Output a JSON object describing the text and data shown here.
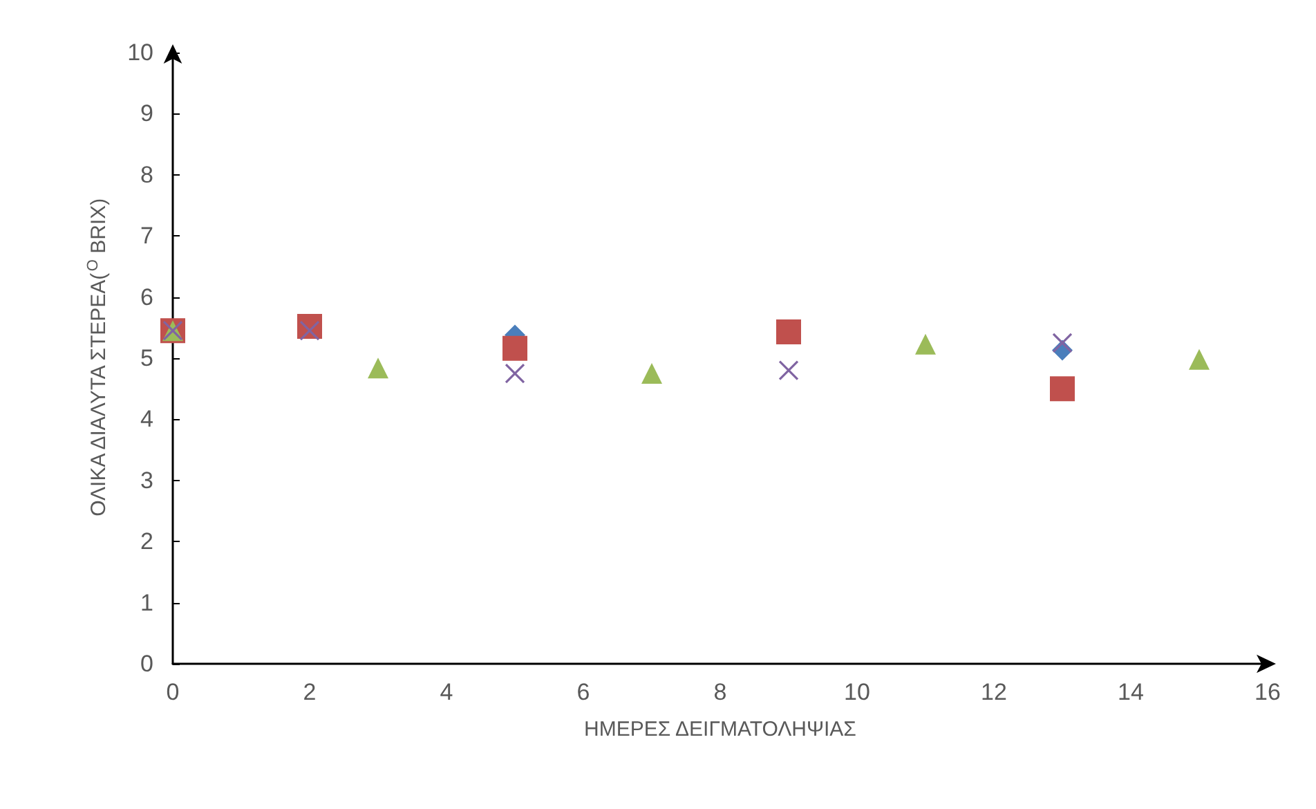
{
  "chart_data": {
    "type": "scatter",
    "xlabel": "ΗΜΕΡΕΣ ΔΕΙΓΜΑΤΟΛΗΨΙΑΣ",
    "ylabel": "ΟΛΙΚΑ ΔΙΑΛΥΤΑ ΣΤΕΡΕΑ($^{O}$ BRIX)",
    "xlim": [
      0,
      16
    ],
    "xticks": [
      0,
      2,
      4,
      6,
      8,
      10,
      12,
      14,
      16
    ],
    "ylim": [
      0,
      10
    ],
    "yticks": [
      0,
      1,
      2,
      3,
      4,
      5,
      6,
      7,
      8,
      9,
      10
    ],
    "grid": false,
    "series": [
      {
        "color": "#4a7ebb",
        "marker": "diamond",
        "x": [
          5,
          13
        ],
        "values": [
          5.38,
          5.13
        ]
      },
      {
        "color": "#c0504d",
        "marker": "square",
        "x": [
          0,
          2,
          5,
          9,
          13
        ],
        "values": [
          5.45,
          5.52,
          5.16,
          5.43,
          4.5
        ]
      },
      {
        "color": "#8064a2",
        "marker": "cross",
        "x": [
          0,
          2,
          5,
          9,
          13
        ],
        "values": [
          5.45,
          5.45,
          4.75,
          4.8,
          5.25
        ]
      },
      {
        "color": "#9bbb59",
        "marker": "triangle",
        "x": [
          0,
          3,
          7,
          11,
          15
        ],
        "values": [
          5.45,
          4.84,
          4.75,
          5.23,
          4.98
        ]
      }
    ]
  }
}
